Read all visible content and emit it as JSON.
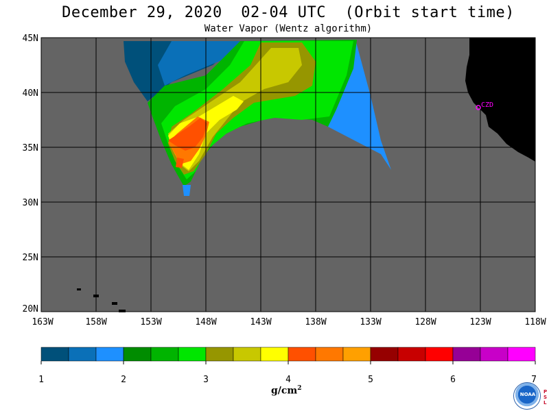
{
  "header": {
    "title": "December 29, 2020  02-04 UTC  (Orbit start time)",
    "subtitle": "Water Vapor (Wentz algorithm)"
  },
  "map": {
    "lat_labels": [
      "45N",
      "40N",
      "35N",
      "30N",
      "25N",
      "20N"
    ],
    "lon_labels": [
      "163W",
      "158W",
      "153W",
      "148W",
      "143W",
      "138W",
      "133W",
      "128W",
      "123W",
      "118W"
    ],
    "station_label": "CZD",
    "colors": {
      "ocean_nodata": "#646464",
      "land": "#000000",
      "station": "#ff00ff",
      "grid": "#000000"
    }
  },
  "legend": {
    "tick_labels": [
      "1",
      "2",
      "3",
      "4",
      "5",
      "6",
      "7"
    ],
    "units": "g/cm",
    "units_sup": "2",
    "colors": [
      "#00507a",
      "#0a70b8",
      "#1e90ff",
      "#008c00",
      "#00b400",
      "#00e600",
      "#969600",
      "#c8c800",
      "#ffff00",
      "#ff5000",
      "#ff7800",
      "#ffa000",
      "#960000",
      "#c80000",
      "#ff0000",
      "#960096",
      "#c800c8",
      "#ff00ff"
    ]
  },
  "logo": {
    "text": "NOAA",
    "side_text": [
      "P",
      "S",
      "L"
    ]
  }
}
